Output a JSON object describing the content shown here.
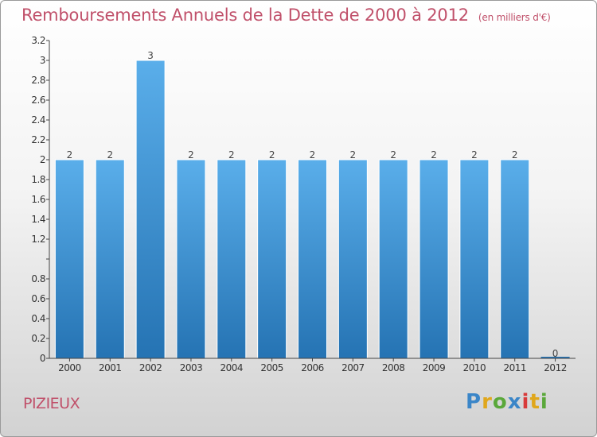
{
  "title": "Remboursements Annuels de la Dette de 2000 à 2012",
  "title_unit": "(en milliers d'€)",
  "commune": "PIZIEUX",
  "logo": {
    "letters": [
      "P",
      "r",
      "o",
      "x",
      "i",
      "t",
      "i"
    ],
    "colors": [
      "#3b86c8",
      "#e0a71c",
      "#5aa83a",
      "#3b86c8",
      "#d83a3a",
      "#e0a71c",
      "#5aa83a"
    ]
  },
  "colors": {
    "title": "#c0506a",
    "bar_light": "#5aaeea",
    "bar_dark": "#2573b3"
  },
  "chart_data": {
    "type": "bar",
    "title": "Remboursements Annuels de la Dette de 2000 à 2012",
    "ylabel": "",
    "xlabel": "",
    "categories": [
      "2000",
      "2001",
      "2002",
      "2003",
      "2004",
      "2005",
      "2006",
      "2007",
      "2008",
      "2009",
      "2010",
      "2011",
      "2012"
    ],
    "values": [
      2,
      2,
      3,
      2,
      2,
      2,
      2,
      2,
      2,
      2,
      2,
      2,
      0
    ],
    "data_labels": [
      "2",
      "2",
      "3",
      "2",
      "2",
      "2",
      "2",
      "2",
      "2",
      "2",
      "2",
      "2",
      "0"
    ],
    "ylim": [
      0,
      3.2
    ],
    "yticks": [
      0,
      0.2,
      0.4,
      0.6,
      0.8,
      1,
      1.2,
      1.4,
      1.6,
      1.8,
      2,
      2.2,
      2.4,
      2.6,
      2.8,
      3,
      3.2
    ],
    "ytick_labels": [
      "0",
      "0.2",
      "0.4",
      "0.6",
      "0.8",
      "",
      "1.2",
      "1.4",
      "1.6",
      "1.8",
      "2",
      "2.2",
      "2.4",
      "2.6",
      "2.8",
      "3",
      "3.2"
    ],
    "grid": false,
    "legend": "none"
  }
}
